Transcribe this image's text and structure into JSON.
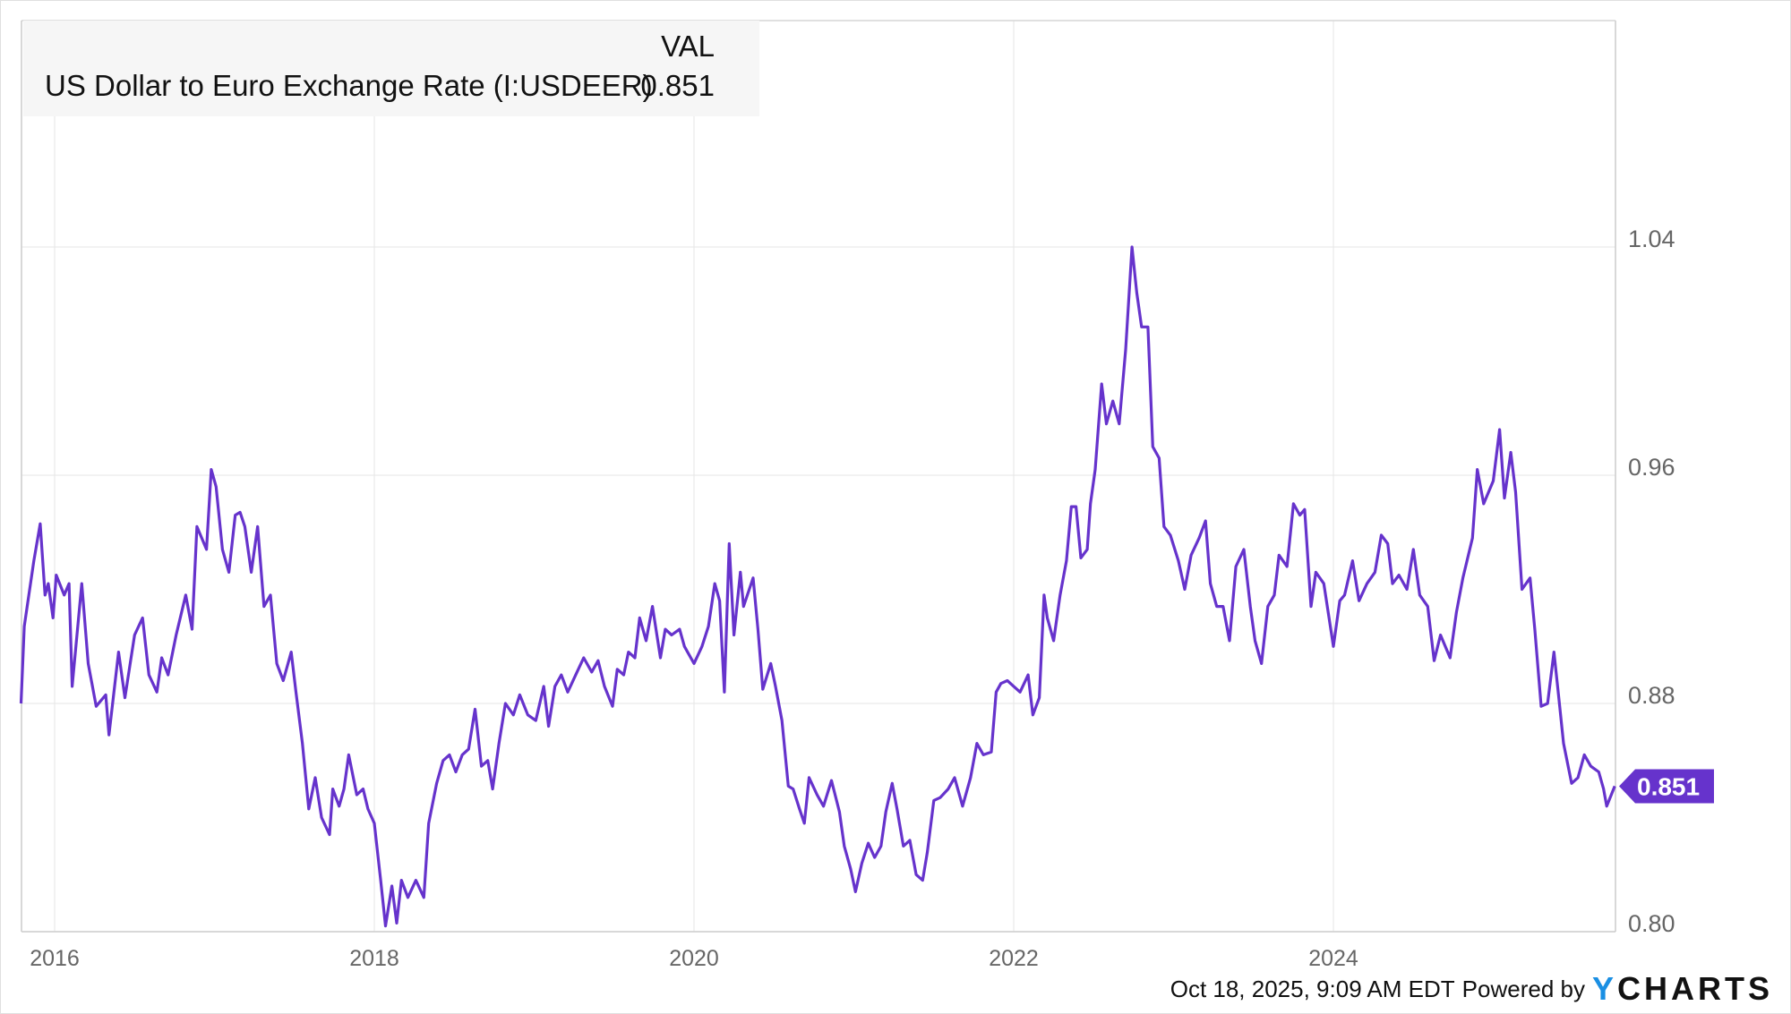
{
  "legend": {
    "header": "VAL",
    "series_name": "US Dollar to Euro Exchange Rate (I:USDEER)",
    "value": "0.851"
  },
  "footer": {
    "timestamp": "Oct 18, 2025, 9:09 AM EDT",
    "powered_by": "Powered by",
    "logo_y": "Y",
    "logo_rest": "CHARTS"
  },
  "colors": {
    "line": "#6633cc",
    "grid": "#e6e6e6",
    "axis_text": "#666666",
    "logo_y": "#1a8fe3"
  },
  "chart_data": {
    "type": "line",
    "title": "",
    "xlabel": "",
    "ylabel": "",
    "x_unit": "year",
    "xlim": [
      2015.79,
      2025.76
    ],
    "ylim": [
      0.8,
      1.07
    ],
    "x_ticks": [
      "2016",
      "2018",
      "2020",
      "2022",
      "2024"
    ],
    "y_ticks": [
      "0.80",
      "0.88",
      "0.96",
      "1.04"
    ],
    "y_axis_side": "right",
    "grid": true,
    "last_value_label": "0.851",
    "series": [
      {
        "name": "US Dollar to Euro Exchange Rate (I:USDEER)",
        "x": [
          2015.79,
          2015.81,
          2015.87,
          2015.91,
          2015.94,
          2015.96,
          2015.99,
          2016.01,
          2016.06,
          2016.09,
          2016.11,
          2016.17,
          2016.21,
          2016.26,
          2016.32,
          2016.34,
          2016.4,
          2016.44,
          2016.5,
          2016.55,
          2016.59,
          2016.64,
          2016.67,
          2016.71,
          2016.76,
          2016.82,
          2016.86,
          2016.89,
          2016.95,
          2016.98,
          2017.01,
          2017.05,
          2017.09,
          2017.13,
          2017.16,
          2017.19,
          2017.23,
          2017.27,
          2017.31,
          2017.35,
          2017.39,
          2017.43,
          2017.48,
          2017.51,
          2017.55,
          2017.59,
          2017.63,
          2017.67,
          2017.72,
          2017.74,
          2017.78,
          2017.81,
          2017.84,
          2017.89,
          2017.93,
          2017.96,
          2018.0,
          2018.04,
          2018.07,
          2018.11,
          2018.14,
          2018.17,
          2018.21,
          2018.26,
          2018.31,
          2018.34,
          2018.39,
          2018.43,
          2018.47,
          2018.51,
          2018.55,
          2018.59,
          2018.63,
          2018.67,
          2018.71,
          2018.74,
          2018.78,
          2018.82,
          2018.87,
          2018.91,
          2018.96,
          2019.01,
          2019.06,
          2019.09,
          2019.13,
          2019.17,
          2019.21,
          2019.26,
          2019.31,
          2019.36,
          2019.4,
          2019.44,
          2019.49,
          2019.52,
          2019.56,
          2019.59,
          2019.63,
          2019.66,
          2019.7,
          2019.74,
          2019.79,
          2019.82,
          2019.86,
          2019.91,
          2019.94,
          2020.0,
          2020.05,
          2020.09,
          2020.13,
          2020.16,
          2020.19,
          2020.22,
          2020.25,
          2020.29,
          2020.31,
          2020.37,
          2020.4,
          2020.43,
          2020.48,
          2020.51,
          2020.55,
          2020.59,
          2020.62,
          2020.66,
          2020.69,
          2020.72,
          2020.77,
          2020.81,
          2020.86,
          2020.91,
          2020.94,
          2020.98,
          2021.01,
          2021.05,
          2021.09,
          2021.13,
          2021.17,
          2021.2,
          2021.24,
          2021.27,
          2021.31,
          2021.35,
          2021.39,
          2021.43,
          2021.46,
          2021.5,
          2021.54,
          2021.59,
          2021.63,
          2021.68,
          2021.73,
          2021.77,
          2021.81,
          2021.86,
          2021.89,
          2021.92,
          2021.96,
          2022.0,
          2022.04,
          2022.09,
          2022.12,
          2022.16,
          2022.19,
          2022.21,
          2022.25,
          2022.29,
          2022.33,
          2022.36,
          2022.39,
          2022.42,
          2022.46,
          2022.48,
          2022.51,
          2022.55,
          2022.58,
          2022.62,
          2022.66,
          2022.7,
          2022.74,
          2022.77,
          2022.8,
          2022.84,
          2022.87,
          2022.91,
          2022.94,
          2022.98,
          2023.03,
          2023.07,
          2023.11,
          2023.16,
          2023.2,
          2023.23,
          2023.27,
          2023.31,
          2023.35,
          2023.39,
          2023.44,
          2023.48,
          2023.51,
          2023.55,
          2023.59,
          2023.63,
          2023.66,
          2023.71,
          2023.75,
          2023.79,
          2023.82,
          2023.86,
          2023.89,
          2023.94,
          2024.0,
          2024.04,
          2024.07,
          2024.12,
          2024.16,
          2024.21,
          2024.26,
          2024.3,
          2024.34,
          2024.37,
          2024.41,
          2024.46,
          2024.5,
          2024.54,
          2024.59,
          2024.63,
          2024.67,
          2024.73,
          2024.77,
          2024.81,
          2024.87,
          2024.9,
          2024.94,
          2025.0,
          2025.04,
          2025.07,
          2025.11,
          2025.14,
          2025.18,
          2025.23,
          2025.26,
          2025.3,
          2025.34,
          2025.38,
          2025.41,
          2025.44,
          2025.49,
          2025.53,
          2025.57,
          2025.61,
          2025.66,
          2025.69,
          2025.71,
          2025.76
        ],
        "y": [
          0.88,
          0.907,
          0.93,
          0.943,
          0.918,
          0.922,
          0.91,
          0.925,
          0.918,
          0.922,
          0.886,
          0.922,
          0.894,
          0.879,
          0.883,
          0.869,
          0.898,
          0.882,
          0.904,
          0.91,
          0.89,
          0.884,
          0.896,
          0.89,
          0.904,
          0.918,
          0.906,
          0.942,
          0.934,
          0.962,
          0.956,
          0.934,
          0.926,
          0.946,
          0.947,
          0.942,
          0.926,
          0.942,
          0.914,
          0.918,
          0.894,
          0.888,
          0.898,
          0.884,
          0.866,
          0.843,
          0.854,
          0.84,
          0.834,
          0.85,
          0.844,
          0.85,
          0.862,
          0.848,
          0.85,
          0.843,
          0.838,
          0.818,
          0.802,
          0.816,
          0.803,
          0.818,
          0.812,
          0.818,
          0.812,
          0.838,
          0.852,
          0.86,
          0.862,
          0.856,
          0.862,
          0.864,
          0.878,
          0.858,
          0.86,
          0.85,
          0.866,
          0.88,
          0.876,
          0.883,
          0.876,
          0.874,
          0.886,
          0.872,
          0.886,
          0.89,
          0.884,
          0.89,
          0.896,
          0.891,
          0.895,
          0.886,
          0.879,
          0.892,
          0.89,
          0.898,
          0.896,
          0.91,
          0.902,
          0.914,
          0.896,
          0.906,
          0.904,
          0.906,
          0.9,
          0.894,
          0.9,
          0.907,
          0.922,
          0.916,
          0.884,
          0.936,
          0.904,
          0.926,
          0.914,
          0.924,
          0.906,
          0.885,
          0.894,
          0.886,
          0.874,
          0.851,
          0.85,
          0.843,
          0.838,
          0.854,
          0.848,
          0.844,
          0.853,
          0.842,
          0.83,
          0.822,
          0.814,
          0.824,
          0.831,
          0.826,
          0.83,
          0.842,
          0.852,
          0.843,
          0.83,
          0.832,
          0.82,
          0.818,
          0.828,
          0.846,
          0.847,
          0.85,
          0.854,
          0.844,
          0.854,
          0.866,
          0.862,
          0.863,
          0.884,
          0.887,
          0.888,
          0.886,
          0.884,
          0.89,
          0.876,
          0.882,
          0.918,
          0.91,
          0.902,
          0.918,
          0.93,
          0.949,
          0.949,
          0.931,
          0.934,
          0.95,
          0.962,
          0.992,
          0.978,
          0.986,
          0.978,
          1.004,
          1.04,
          1.024,
          1.012,
          1.012,
          0.97,
          0.966,
          0.942,
          0.939,
          0.93,
          0.92,
          0.932,
          0.938,
          0.944,
          0.922,
          0.914,
          0.914,
          0.902,
          0.928,
          0.934,
          0.914,
          0.902,
          0.894,
          0.914,
          0.918,
          0.932,
          0.928,
          0.95,
          0.946,
          0.948,
          0.914,
          0.926,
          0.922,
          0.9,
          0.916,
          0.918,
          0.93,
          0.916,
          0.922,
          0.926,
          0.939,
          0.936,
          0.922,
          0.925,
          0.92,
          0.934,
          0.918,
          0.914,
          0.895,
          0.904,
          0.896,
          0.912,
          0.924,
          0.938,
          0.962,
          0.95,
          0.958,
          0.976,
          0.952,
          0.968,
          0.954,
          0.92,
          0.924,
          0.906,
          0.879,
          0.88,
          0.898,
          0.882,
          0.866,
          0.852,
          0.854,
          0.862,
          0.858,
          0.856,
          0.85,
          0.844,
          0.851
        ]
      }
    ]
  }
}
